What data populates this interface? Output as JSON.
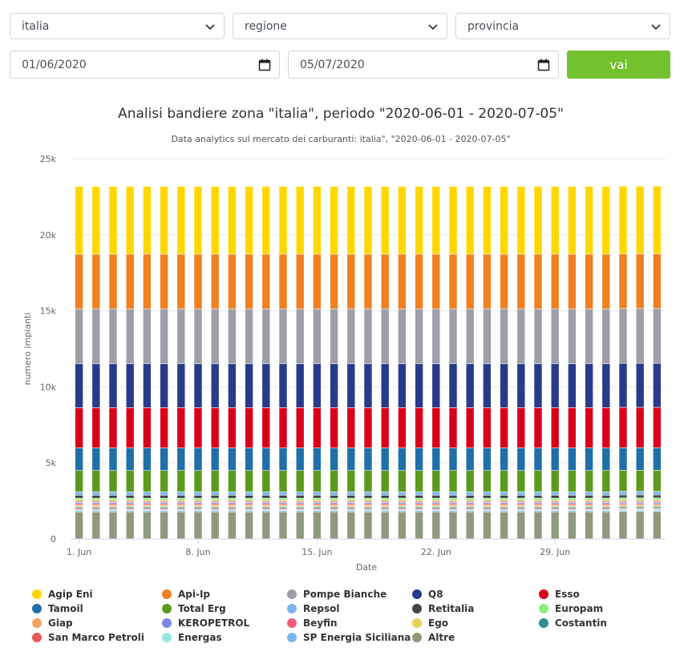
{
  "filters": {
    "zone": "italia",
    "region": "regione",
    "province": "provincia",
    "date_from": "01/06/2020",
    "date_to": "05/07/2020",
    "submit_label": "vai"
  },
  "colors": {
    "accent": "#73c12d"
  },
  "chart_data": {
    "type": "bar",
    "stacked": true,
    "title": "Analisi bandiere zona \"italia\", periodo \"2020-06-01 - 2020-07-05\"",
    "subtitle": "Data analytics sul mercato dei carburanti: italia\", \"2020-06-01 - 2020-07-05\"",
    "xlabel": "Date",
    "ylabel": "numero impianti",
    "ylim": [
      0,
      25000
    ],
    "yticks": [
      0,
      5000,
      10000,
      15000,
      20000,
      25000
    ],
    "ytick_labels": [
      "0",
      "5k",
      "10k",
      "15k",
      "20k",
      "25k"
    ],
    "xtick_labels": [
      {
        "index": 0,
        "label": "1. Jun"
      },
      {
        "index": 7,
        "label": "8. Jun"
      },
      {
        "index": 14,
        "label": "15. Jun"
      },
      {
        "index": 21,
        "label": "22. Jun"
      },
      {
        "index": 28,
        "label": "29. Jun"
      }
    ],
    "categories": [
      "2020-06-01",
      "2020-06-02",
      "2020-06-03",
      "2020-06-04",
      "2020-06-05",
      "2020-06-06",
      "2020-06-07",
      "2020-06-08",
      "2020-06-09",
      "2020-06-10",
      "2020-06-11",
      "2020-06-12",
      "2020-06-13",
      "2020-06-14",
      "2020-06-15",
      "2020-06-16",
      "2020-06-17",
      "2020-06-18",
      "2020-06-19",
      "2020-06-20",
      "2020-06-21",
      "2020-06-22",
      "2020-06-23",
      "2020-06-24",
      "2020-06-25",
      "2020-06-26",
      "2020-06-27",
      "2020-06-28",
      "2020-06-29",
      "2020-06-30",
      "2020-07-01",
      "2020-07-02",
      "2020-07-03",
      "2020-07-04",
      "2020-07-05"
    ],
    "grid": true,
    "legend_position": "bottom",
    "series": [
      {
        "name": "Altre",
        "color": "#8f9a7d",
        "values": [
          1780,
          1780,
          1780,
          1780,
          1780,
          1780,
          1780,
          1780,
          1780,
          1780,
          1780,
          1780,
          1780,
          1780,
          1780,
          1780,
          1780,
          1780,
          1780,
          1780,
          1780,
          1780,
          1780,
          1780,
          1780,
          1780,
          1780,
          1780,
          1780,
          1780,
          1780,
          1780,
          1800,
          1800,
          1800
        ]
      },
      {
        "name": "SP Energia Siciliana",
        "color": "#7cb5ec",
        "values": [
          80,
          80,
          80,
          80,
          80,
          80,
          80,
          80,
          80,
          80,
          80,
          80,
          80,
          80,
          80,
          80,
          80,
          80,
          80,
          80,
          80,
          80,
          80,
          80,
          80,
          80,
          80,
          80,
          80,
          80,
          80,
          80,
          80,
          80,
          80
        ]
      },
      {
        "name": "Energas",
        "color": "#91e8e1",
        "values": [
          80,
          80,
          80,
          80,
          80,
          80,
          80,
          80,
          80,
          80,
          80,
          80,
          80,
          80,
          80,
          80,
          80,
          80,
          80,
          80,
          80,
          80,
          80,
          80,
          80,
          80,
          80,
          80,
          80,
          80,
          80,
          80,
          80,
          80,
          80
        ]
      },
      {
        "name": "San Marco Petroli",
        "color": "#e85a5a",
        "values": [
          80,
          80,
          80,
          80,
          80,
          80,
          80,
          80,
          80,
          80,
          80,
          80,
          80,
          80,
          80,
          80,
          80,
          80,
          80,
          80,
          80,
          80,
          80,
          80,
          80,
          80,
          80,
          80,
          80,
          80,
          80,
          80,
          80,
          80,
          80
        ]
      },
      {
        "name": "Costantin",
        "color": "#2b908f",
        "values": [
          90,
          90,
          90,
          90,
          90,
          90,
          90,
          90,
          90,
          90,
          90,
          90,
          90,
          90,
          90,
          90,
          90,
          90,
          90,
          90,
          90,
          90,
          90,
          90,
          90,
          90,
          90,
          90,
          90,
          90,
          90,
          90,
          90,
          90,
          90
        ]
      },
      {
        "name": "Ego",
        "color": "#e4d354",
        "values": [
          100,
          100,
          100,
          100,
          100,
          100,
          100,
          100,
          100,
          100,
          100,
          100,
          100,
          100,
          100,
          100,
          100,
          100,
          100,
          100,
          100,
          100,
          100,
          100,
          100,
          100,
          100,
          100,
          100,
          100,
          100,
          100,
          100,
          100,
          100
        ]
      },
      {
        "name": "Beyfin",
        "color": "#f45b7a",
        "values": [
          100,
          100,
          100,
          100,
          100,
          100,
          100,
          100,
          100,
          100,
          100,
          100,
          100,
          100,
          100,
          100,
          100,
          100,
          100,
          100,
          100,
          100,
          100,
          100,
          100,
          100,
          100,
          100,
          100,
          100,
          100,
          100,
          100,
          100,
          100
        ]
      },
      {
        "name": "KEROPETROL",
        "color": "#8085e9",
        "values": [
          100,
          100,
          100,
          100,
          100,
          100,
          100,
          100,
          100,
          100,
          100,
          100,
          100,
          100,
          100,
          100,
          100,
          100,
          100,
          100,
          100,
          100,
          100,
          100,
          100,
          100,
          100,
          100,
          100,
          100,
          100,
          100,
          100,
          100,
          100
        ]
      },
      {
        "name": "Giap",
        "color": "#f7a35c",
        "values": [
          120,
          120,
          120,
          120,
          120,
          120,
          120,
          120,
          120,
          120,
          120,
          120,
          120,
          120,
          120,
          120,
          120,
          120,
          120,
          120,
          120,
          120,
          120,
          120,
          120,
          120,
          120,
          120,
          120,
          120,
          120,
          120,
          120,
          120,
          120
        ]
      },
      {
        "name": "Europam",
        "color": "#90ed7d",
        "values": [
          150,
          150,
          150,
          150,
          150,
          150,
          150,
          150,
          150,
          150,
          150,
          150,
          150,
          150,
          150,
          150,
          150,
          150,
          150,
          150,
          150,
          150,
          150,
          150,
          150,
          150,
          150,
          150,
          150,
          150,
          150,
          150,
          150,
          150,
          150
        ]
      },
      {
        "name": "Retitalia",
        "color": "#434348",
        "values": [
          200,
          200,
          200,
          200,
          200,
          200,
          200,
          200,
          200,
          200,
          200,
          200,
          200,
          200,
          200,
          200,
          200,
          200,
          200,
          200,
          200,
          200,
          200,
          200,
          200,
          200,
          200,
          200,
          200,
          200,
          200,
          200,
          200,
          200,
          200
        ]
      },
      {
        "name": "Repsol",
        "color": "#7cb5ec",
        "values": [
          220,
          220,
          220,
          220,
          220,
          220,
          220,
          220,
          220,
          220,
          220,
          220,
          220,
          220,
          220,
          220,
          220,
          220,
          220,
          220,
          220,
          220,
          220,
          220,
          220,
          220,
          220,
          220,
          220,
          220,
          220,
          220,
          220,
          220,
          220
        ]
      },
      {
        "name": "Total Erg",
        "color": "#5b9a1e",
        "values": [
          1400,
          1400,
          1400,
          1400,
          1400,
          1400,
          1400,
          1400,
          1400,
          1400,
          1400,
          1400,
          1400,
          1400,
          1400,
          1400,
          1400,
          1400,
          1400,
          1400,
          1400,
          1400,
          1400,
          1400,
          1400,
          1400,
          1400,
          1400,
          1400,
          1400,
          1400,
          1400,
          1400,
          1400,
          1400
        ]
      },
      {
        "name": "Tamoil",
        "color": "#1f6fa8",
        "values": [
          1480,
          1480,
          1480,
          1480,
          1480,
          1480,
          1480,
          1480,
          1480,
          1480,
          1480,
          1480,
          1480,
          1480,
          1480,
          1480,
          1480,
          1480,
          1480,
          1480,
          1480,
          1480,
          1480,
          1480,
          1480,
          1480,
          1480,
          1480,
          1480,
          1480,
          1480,
          1480,
          1480,
          1480,
          1480
        ]
      },
      {
        "name": "Esso",
        "color": "#d9001b",
        "values": [
          2650,
          2650,
          2650,
          2650,
          2650,
          2650,
          2650,
          2650,
          2650,
          2650,
          2650,
          2650,
          2650,
          2650,
          2650,
          2650,
          2650,
          2650,
          2650,
          2650,
          2650,
          2650,
          2650,
          2650,
          2650,
          2650,
          2650,
          2650,
          2650,
          2650,
          2650,
          2650,
          2650,
          2650,
          2650
        ]
      },
      {
        "name": "Q8",
        "color": "#283a8a",
        "values": [
          2900,
          2900,
          2900,
          2900,
          2900,
          2900,
          2900,
          2900,
          2900,
          2900,
          2900,
          2900,
          2900,
          2900,
          2900,
          2900,
          2900,
          2900,
          2900,
          2900,
          2900,
          2900,
          2900,
          2900,
          2900,
          2900,
          2900,
          2900,
          2900,
          2900,
          2900,
          2900,
          2900,
          2900,
          2900
        ]
      },
      {
        "name": "Pompe Bianche",
        "color": "#9e9ea6",
        "values": [
          3600,
          3600,
          3600,
          3600,
          3600,
          3600,
          3600,
          3600,
          3600,
          3600,
          3600,
          3600,
          3600,
          3600,
          3600,
          3600,
          3600,
          3600,
          3600,
          3600,
          3600,
          3600,
          3600,
          3600,
          3600,
          3600,
          3600,
          3600,
          3600,
          3600,
          3600,
          3600,
          3600,
          3600,
          3600
        ]
      },
      {
        "name": "Api-Ip",
        "color": "#f08020",
        "values": [
          3600,
          3600,
          3600,
          3600,
          3600,
          3600,
          3600,
          3600,
          3600,
          3600,
          3600,
          3600,
          3600,
          3600,
          3600,
          3600,
          3600,
          3600,
          3600,
          3600,
          3600,
          3600,
          3600,
          3600,
          3600,
          3600,
          3600,
          3600,
          3600,
          3600,
          3600,
          3600,
          3600,
          3600,
          3600
        ]
      },
      {
        "name": "Agip Eni",
        "color": "#ffd700",
        "values": [
          4450,
          4450,
          4450,
          4450,
          4450,
          4450,
          4450,
          4450,
          4450,
          4450,
          4450,
          4450,
          4450,
          4450,
          4450,
          4450,
          4450,
          4450,
          4450,
          4450,
          4450,
          4450,
          4450,
          4450,
          4450,
          4450,
          4450,
          4450,
          4450,
          4450,
          4450,
          4450,
          4450,
          4450,
          4450
        ]
      }
    ],
    "legend": [
      [
        "Agip Eni",
        "Api-Ip",
        "Pompe Bianche",
        "Q8",
        "Esso"
      ],
      [
        "Tamoil",
        "Total Erg",
        "Repsol",
        "Retitalia",
        "Europam"
      ],
      [
        "Giap",
        "KEROPETROL",
        "Beyfin",
        "Ego",
        "Costantin"
      ],
      [
        "San Marco Petroli",
        "Energas",
        "SP Energia Siciliana",
        "Altre"
      ]
    ]
  }
}
